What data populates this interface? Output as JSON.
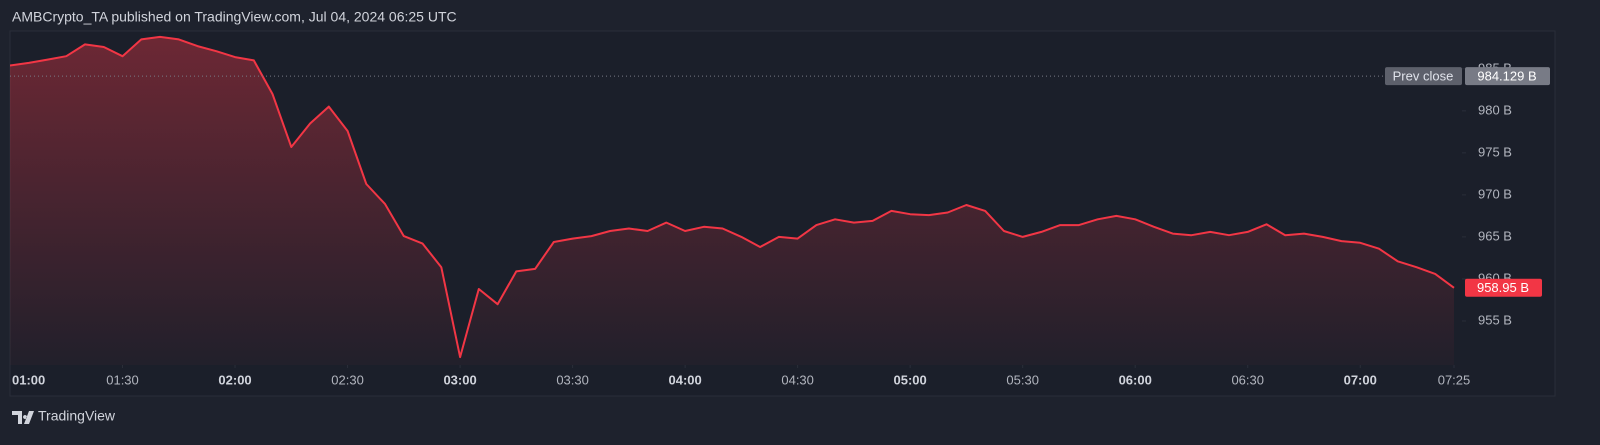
{
  "chart_data": {
    "type": "area",
    "title": "AMBCrypto_TA published on TradingView.com, Jul 04, 2024 06:25 UTC",
    "branding": "TradingView",
    "color": "#f23645",
    "x": [
      "01:00",
      "01:05",
      "01:10",
      "01:15",
      "01:20",
      "01:25",
      "01:30",
      "01:35",
      "01:40",
      "01:45",
      "01:50",
      "01:55",
      "02:00",
      "02:05",
      "02:10",
      "02:15",
      "02:20",
      "02:25",
      "02:30",
      "02:35",
      "02:40",
      "02:45",
      "02:50",
      "02:55",
      "03:00",
      "03:05",
      "03:10",
      "03:15",
      "03:20",
      "03:25",
      "03:30",
      "03:35",
      "03:40",
      "03:45",
      "03:50",
      "03:55",
      "04:00",
      "04:05",
      "04:10",
      "04:15",
      "04:20",
      "04:25",
      "04:30",
      "04:35",
      "04:40",
      "04:45",
      "04:50",
      "04:55",
      "05:00",
      "05:05",
      "05:10",
      "05:15",
      "05:20",
      "05:25",
      "05:30",
      "05:35",
      "05:40",
      "05:45",
      "05:50",
      "05:55",
      "06:00",
      "06:05",
      "06:10",
      "06:15",
      "06:20",
      "06:25",
      "06:30",
      "06:35",
      "06:40",
      "06:45",
      "06:50",
      "06:55",
      "07:00",
      "07:05",
      "07:10",
      "07:15",
      "07:20",
      "07:25"
    ],
    "values": [
      985.4,
      985.7,
      986.1,
      986.5,
      987.9,
      987.6,
      986.5,
      988.5,
      988.8,
      988.5,
      987.7,
      987.1,
      986.4,
      986.0,
      982.0,
      975.7,
      978.5,
      980.5,
      977.6,
      971.3,
      968.9,
      965.1,
      964.2,
      961.4,
      950.7,
      958.8,
      957.0,
      960.9,
      961.2,
      964.4,
      964.8,
      965.1,
      965.7,
      966.0,
      965.7,
      966.7,
      965.7,
      966.2,
      966.0,
      965.0,
      963.8,
      965.0,
      964.8,
      966.4,
      967.1,
      966.7,
      966.9,
      968.1,
      967.7,
      967.6,
      967.9,
      968.8,
      968.1,
      965.7,
      965.0,
      965.6,
      966.4,
      966.4,
      967.1,
      967.5,
      967.1,
      966.2,
      965.4,
      965.2,
      965.6,
      965.2,
      965.6,
      966.5,
      965.2,
      965.4,
      965.0,
      964.5,
      964.3,
      963.6,
      962.1,
      961.4,
      960.6,
      958.95
    ],
    "value_labels": [
      null,
      null,
      null,
      null,
      null,
      null,
      null,
      null,
      null,
      null,
      null,
      null,
      null,
      null,
      null,
      null,
      null,
      null,
      null,
      null,
      null,
      null,
      null,
      null,
      null,
      null,
      null,
      null,
      null,
      null,
      null,
      null,
      null,
      null,
      null,
      null,
      null,
      null,
      null,
      null,
      null,
      null,
      null,
      null,
      null,
      null,
      null,
      null,
      null,
      null,
      null,
      null,
      null,
      null,
      null,
      null,
      null,
      null,
      null,
      null,
      null,
      null,
      null,
      null,
      null,
      null,
      null,
      null,
      null,
      null,
      null,
      null,
      null,
      null,
      null,
      null,
      null,
      "958.95 B"
    ],
    "prev_close": {
      "label": "Prev close",
      "value": 984.129,
      "value_label": "984.129 B"
    },
    "xlim": [
      "01:00",
      "07:25"
    ],
    "xticks": [
      "01:00",
      "01:30",
      "02:00",
      "02:30",
      "03:00",
      "03:30",
      "04:00",
      "04:30",
      "05:00",
      "05:30",
      "06:00",
      "06:30",
      "07:00",
      "07:25"
    ],
    "ylim": [
      949.76,
      989.5
    ],
    "yticks": [
      {
        "value": 955,
        "label": "955 B"
      },
      {
        "value": 960,
        "label": "960 B"
      },
      {
        "value": 965,
        "label": "965 B"
      },
      {
        "value": 970,
        "label": "970 B"
      },
      {
        "value": 975,
        "label": "975 B"
      },
      {
        "value": 980,
        "label": "980 B"
      },
      {
        "value": 985,
        "label": "985 B"
      }
    ]
  }
}
